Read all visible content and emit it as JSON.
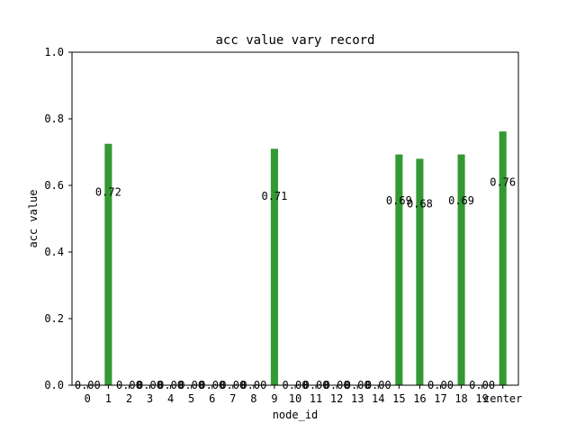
{
  "chart_data": {
    "type": "bar",
    "title": "acc value vary record",
    "xlabel": "node_id",
    "ylabel": "acc value",
    "ylim": [
      0,
      1.0
    ],
    "yticks": [
      "0.0",
      "0.2",
      "0.4",
      "0.6",
      "0.8",
      "1.0"
    ],
    "categories": [
      "0",
      "1",
      "2",
      "3",
      "4",
      "5",
      "6",
      "7",
      "8",
      "9",
      "10",
      "11",
      "12",
      "13",
      "14",
      "15",
      "16",
      "17",
      "18",
      "19",
      "center"
    ],
    "values": [
      0,
      0.725,
      0,
      0,
      0,
      0,
      0,
      0,
      0,
      0.71,
      0,
      0,
      0,
      0,
      0,
      0.693,
      0.68,
      0,
      0.693,
      0,
      0.762
    ],
    "data_labels": [
      "0.00",
      "0.72",
      "0.00",
      "0.00",
      "0.00",
      "0.00",
      "0.00",
      "0.00",
      "0.00",
      "0.71",
      "0.00",
      "0.00",
      "0.00",
      "0.00",
      "0.00",
      "0.69",
      "0.68",
      "0.00",
      "0.69",
      "0.00",
      "0.76"
    ],
    "bar_color": "#339933",
    "grid": false,
    "legend": "none"
  }
}
